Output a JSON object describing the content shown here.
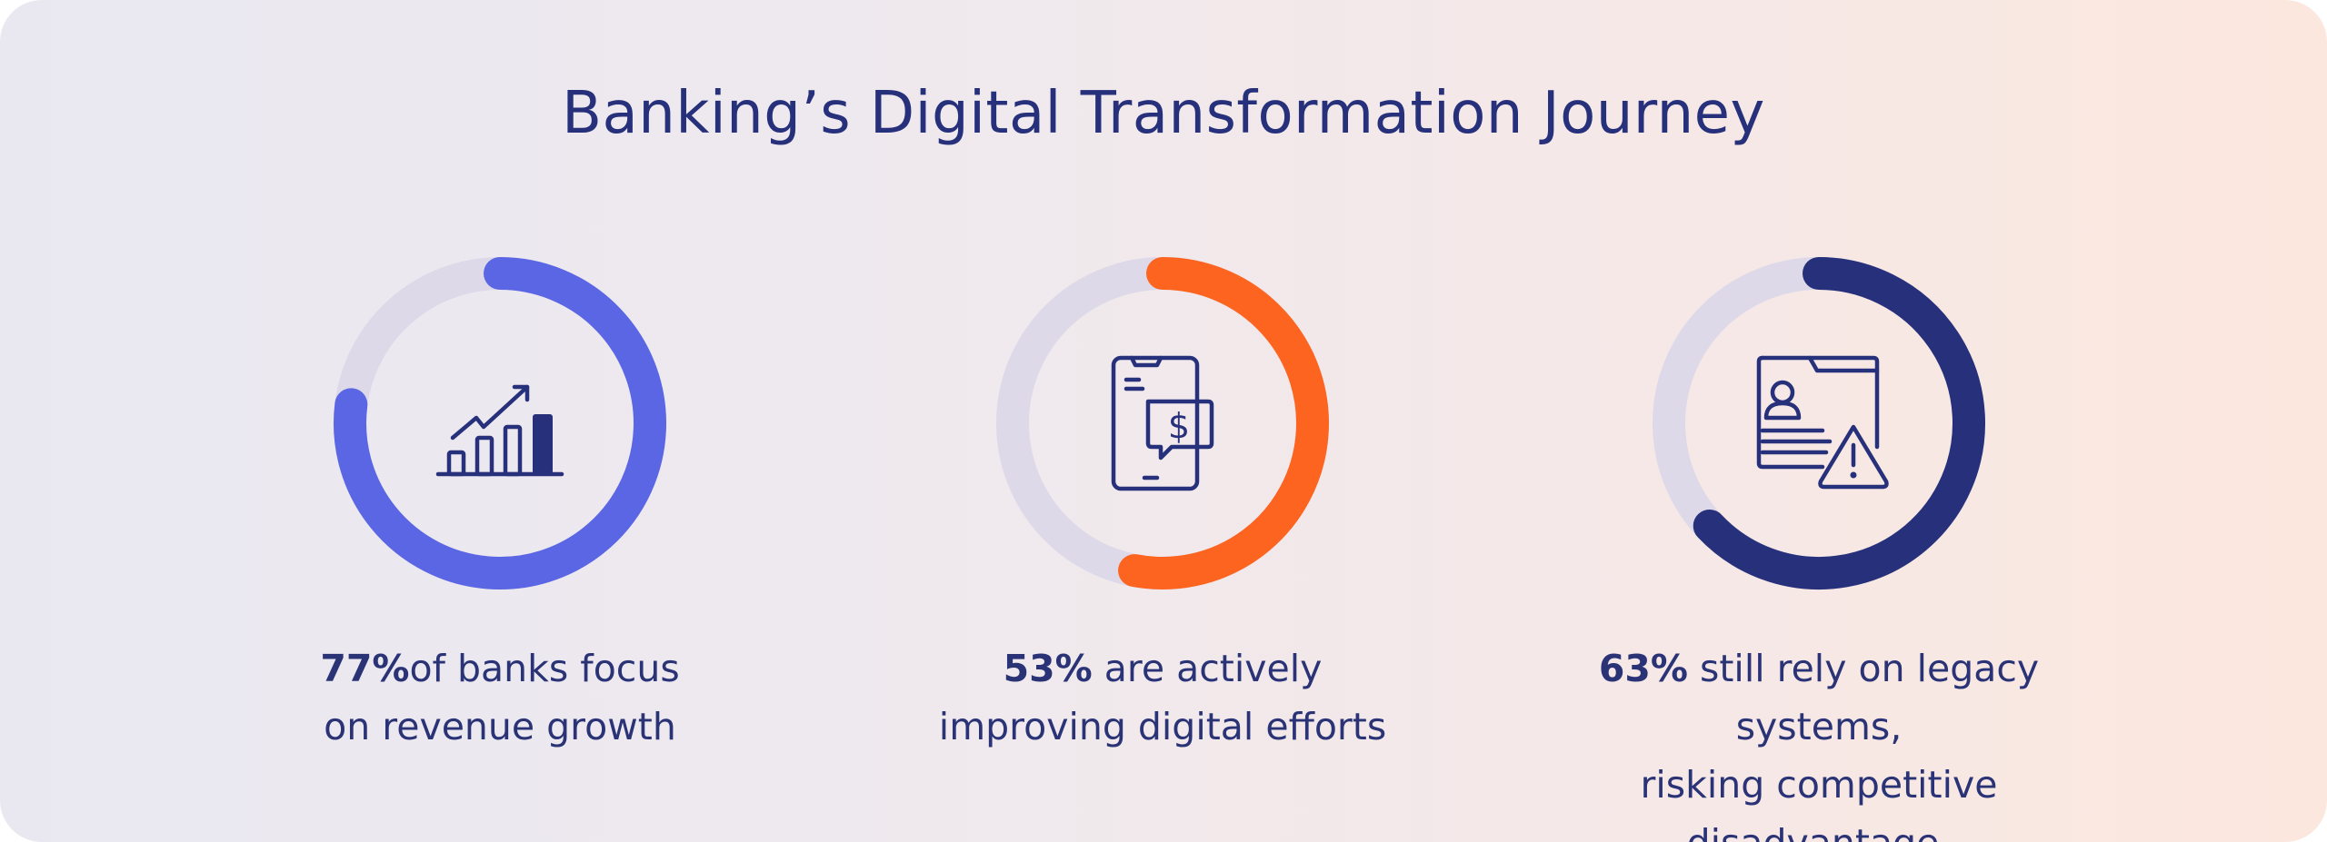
{
  "title": "Banking’s Digital Transformation Journey",
  "colors": {
    "track": "#ddd9e9",
    "stat1": "#5a66e3",
    "stat2": "#fc6420",
    "stat3": "#27307a",
    "text": "#27307a"
  },
  "stats": [
    {
      "percent": 77,
      "value_label": "77%",
      "line1_rest": "of banks focus",
      "line2": "on revenue growth",
      "icon": "growth-chart-icon"
    },
    {
      "percent": 53,
      "value_label": "53%",
      "line1_rest": " are actively",
      "line2": "improving digital efforts",
      "icon": "mobile-payment-icon"
    },
    {
      "percent": 63,
      "value_label": "63%",
      "line1_rest": " still rely on legacy systems,",
      "line2": "risking competitive disadvantage.",
      "icon": "legacy-system-warning-icon"
    }
  ]
}
